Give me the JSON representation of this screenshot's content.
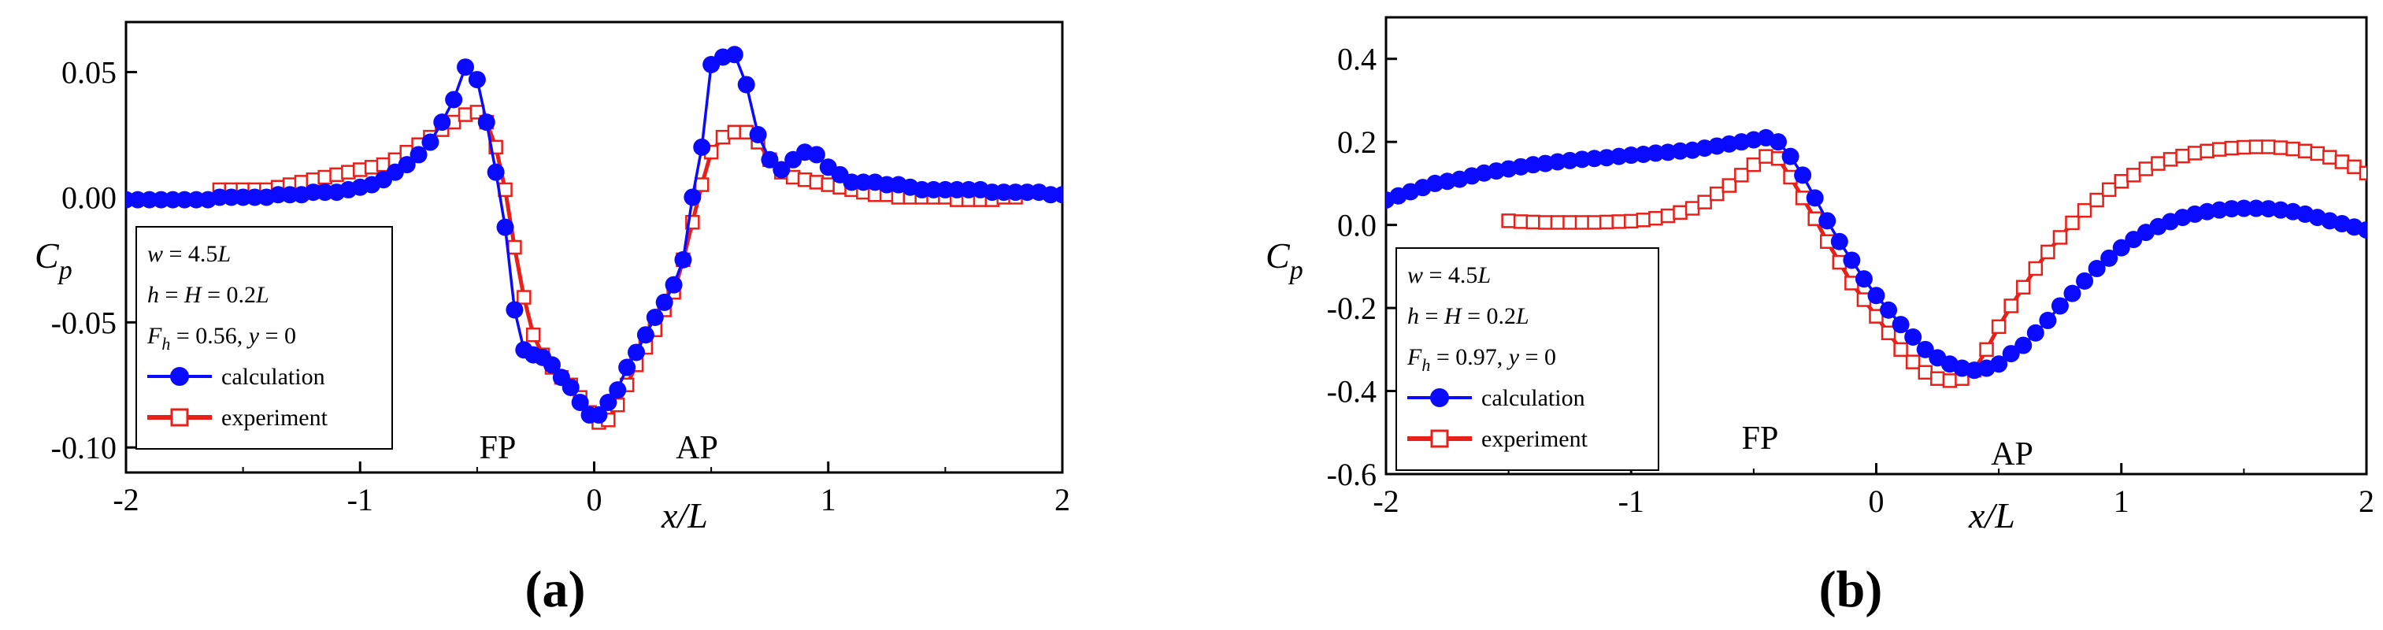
{
  "chart_data": [
    {
      "type": "line",
      "panel_label": "(a)",
      "xlim": [
        -2,
        2
      ],
      "ylim": [
        -0.11,
        0.07
      ],
      "xticks": [
        "-2",
        "-1",
        "0",
        "1",
        "2"
      ],
      "yticks": [
        "0.05",
        "0.00",
        "-0.05",
        "-0.10"
      ],
      "ytick_values": [
        0.05,
        0.0,
        -0.05,
        -0.1
      ],
      "xlabel": "x/L",
      "ylabel_main": "C",
      "ylabel_sub": "p",
      "annotations": [
        {
          "text": "FP",
          "x": -0.5,
          "y": -0.1
        },
        {
          "text": "AP",
          "x": 0.5,
          "y": -0.1
        }
      ],
      "legend": {
        "position": "bottom-left",
        "params": [
          {
            "sym": "w",
            "rest": " = 4.5",
            "end": "L"
          },
          {
            "sym": "h",
            "rest": " = ",
            "sym2": "H",
            "rest2": " = 0.2",
            "end": "L"
          },
          {
            "sym": "F",
            "sub": "h",
            "rest": " = 0.56, ",
            "sym2": "y",
            "rest2": " = 0"
          }
        ],
        "series_labels": [
          "calculation",
          "experiment"
        ]
      },
      "series": [
        {
          "name": "calculation",
          "color": "#0a0aff",
          "marker": "filled-circle",
          "x": [
            -2.0,
            -1.95,
            -1.9,
            -1.85,
            -1.8,
            -1.75,
            -1.7,
            -1.65,
            -1.6,
            -1.55,
            -1.5,
            -1.45,
            -1.4,
            -1.35,
            -1.3,
            -1.25,
            -1.2,
            -1.15,
            -1.1,
            -1.05,
            -1.0,
            -0.95,
            -0.9,
            -0.85,
            -0.8,
            -0.75,
            -0.7,
            -0.65,
            -0.6,
            -0.55,
            -0.5,
            -0.46,
            -0.42,
            -0.38,
            -0.34,
            -0.3,
            -0.26,
            -0.22,
            -0.18,
            -0.14,
            -0.1,
            -0.06,
            -0.02,
            0.02,
            0.06,
            0.1,
            0.14,
            0.18,
            0.22,
            0.26,
            0.3,
            0.34,
            0.38,
            0.42,
            0.46,
            0.5,
            0.55,
            0.6,
            0.65,
            0.7,
            0.75,
            0.8,
            0.85,
            0.9,
            0.95,
            1.0,
            1.05,
            1.1,
            1.15,
            1.2,
            1.25,
            1.3,
            1.35,
            1.4,
            1.45,
            1.5,
            1.55,
            1.6,
            1.65,
            1.7,
            1.75,
            1.8,
            1.85,
            1.9,
            1.95,
            2.0
          ],
          "y": [
            -0.001,
            -0.001,
            -0.001,
            -0.001,
            -0.001,
            -0.001,
            -0.001,
            -0.001,
            0.0,
            0.0,
            0.0,
            0.0,
            0.0,
            0.001,
            0.001,
            0.001,
            0.002,
            0.002,
            0.002,
            0.003,
            0.004,
            0.005,
            0.007,
            0.01,
            0.013,
            0.017,
            0.022,
            0.03,
            0.039,
            0.052,
            0.047,
            0.03,
            0.01,
            -0.012,
            -0.045,
            -0.061,
            -0.063,
            -0.064,
            -0.067,
            -0.072,
            -0.076,
            -0.082,
            -0.087,
            -0.087,
            -0.082,
            -0.077,
            -0.068,
            -0.062,
            -0.055,
            -0.048,
            -0.042,
            -0.035,
            -0.025,
            0.0,
            0.02,
            0.053,
            0.056,
            0.057,
            0.045,
            0.025,
            0.015,
            0.011,
            0.015,
            0.018,
            0.017,
            0.012,
            0.009,
            0.006,
            0.006,
            0.006,
            0.005,
            0.005,
            0.004,
            0.003,
            0.003,
            0.003,
            0.003,
            0.003,
            0.003,
            0.002,
            0.002,
            0.002,
            0.002,
            0.002,
            0.001,
            0.001
          ]
        },
        {
          "name": "experiment",
          "color": "#e8201a",
          "marker": "open-square",
          "x": [
            -1.6,
            -1.55,
            -1.5,
            -1.45,
            -1.4,
            -1.35,
            -1.3,
            -1.25,
            -1.2,
            -1.15,
            -1.1,
            -1.05,
            -1.0,
            -0.95,
            -0.9,
            -0.85,
            -0.8,
            -0.75,
            -0.7,
            -0.65,
            -0.6,
            -0.55,
            -0.5,
            -0.46,
            -0.42,
            -0.38,
            -0.34,
            -0.3,
            -0.26,
            -0.22,
            -0.18,
            -0.14,
            -0.1,
            -0.06,
            -0.02,
            0.02,
            0.06,
            0.1,
            0.14,
            0.18,
            0.22,
            0.26,
            0.3,
            0.34,
            0.38,
            0.42,
            0.46,
            0.5,
            0.55,
            0.6,
            0.65,
            0.7,
            0.75,
            0.8,
            0.85,
            0.9,
            0.95,
            1.0,
            1.05,
            1.1,
            1.15,
            1.2,
            1.25,
            1.3,
            1.35,
            1.4,
            1.45,
            1.5,
            1.55,
            1.6,
            1.65,
            1.7,
            1.75,
            1.8
          ],
          "y": [
            0.003,
            0.003,
            0.003,
            0.003,
            0.003,
            0.004,
            0.005,
            0.006,
            0.007,
            0.008,
            0.009,
            0.01,
            0.011,
            0.012,
            0.013,
            0.015,
            0.018,
            0.021,
            0.024,
            0.027,
            0.03,
            0.033,
            0.034,
            0.03,
            0.02,
            0.003,
            -0.02,
            -0.04,
            -0.055,
            -0.063,
            -0.068,
            -0.072,
            -0.075,
            -0.08,
            -0.086,
            -0.09,
            -0.089,
            -0.083,
            -0.075,
            -0.067,
            -0.06,
            -0.053,
            -0.045,
            -0.038,
            -0.025,
            -0.01,
            0.005,
            0.018,
            0.024,
            0.026,
            0.026,
            0.022,
            0.015,
            0.01,
            0.008,
            0.007,
            0.006,
            0.005,
            0.004,
            0.003,
            0.002,
            0.001,
            0.001,
            0.0,
            0.0,
            0.0,
            0.0,
            0.0,
            -0.001,
            -0.001,
            -0.001,
            -0.001,
            0.0,
            0.0
          ]
        }
      ]
    },
    {
      "type": "line",
      "panel_label": "(b)",
      "xlim": [
        -2,
        2
      ],
      "ylim": [
        -0.6,
        0.5
      ],
      "xticks": [
        "-2",
        "-1",
        "0",
        "1",
        "2"
      ],
      "yticks": [
        "0.4",
        "0.2",
        "0.0",
        "-0.2",
        "-0.4",
        "-0.6"
      ],
      "ytick_values": [
        0.4,
        0.2,
        0.0,
        -0.2,
        -0.4,
        -0.6
      ],
      "xlabel": "x/L",
      "ylabel_main": "C",
      "ylabel_sub": "p",
      "annotations": [
        {
          "text": "FP",
          "x": -0.5,
          "y": -0.55
        },
        {
          "text": "AP",
          "x": 0.5,
          "y": -0.55
        }
      ],
      "legend": {
        "position": "bottom-left",
        "params": [
          {
            "sym": "w",
            "rest": " = 4.5",
            "end": "L"
          },
          {
            "sym": "h",
            "rest": " = ",
            "sym2": "H",
            "rest2": " = 0.2",
            "end": "L"
          },
          {
            "sym": "F",
            "sub": "h",
            "rest": " = 0.97, ",
            "sym2": "y",
            "rest2": " = 0"
          }
        ],
        "series_labels": [
          "calculation",
          "experiment"
        ]
      },
      "series": [
        {
          "name": "calculation",
          "color": "#0a0aff",
          "marker": "filled-circle",
          "x": [
            -2.0,
            -1.95,
            -1.9,
            -1.85,
            -1.8,
            -1.75,
            -1.7,
            -1.65,
            -1.6,
            -1.55,
            -1.5,
            -1.45,
            -1.4,
            -1.35,
            -1.3,
            -1.25,
            -1.2,
            -1.15,
            -1.1,
            -1.05,
            -1.0,
            -0.95,
            -0.9,
            -0.85,
            -0.8,
            -0.75,
            -0.7,
            -0.65,
            -0.6,
            -0.55,
            -0.5,
            -0.45,
            -0.4,
            -0.35,
            -0.3,
            -0.25,
            -0.2,
            -0.15,
            -0.1,
            -0.05,
            0.0,
            0.05,
            0.1,
            0.15,
            0.2,
            0.25,
            0.3,
            0.35,
            0.4,
            0.45,
            0.5,
            0.55,
            0.6,
            0.65,
            0.7,
            0.75,
            0.8,
            0.85,
            0.9,
            0.95,
            1.0,
            1.05,
            1.1,
            1.15,
            1.2,
            1.25,
            1.3,
            1.35,
            1.4,
            1.45,
            1.5,
            1.55,
            1.6,
            1.65,
            1.7,
            1.75,
            1.8,
            1.85,
            1.9,
            1.95,
            2.0
          ],
          "y": [
            0.06,
            0.07,
            0.08,
            0.09,
            0.1,
            0.105,
            0.11,
            0.118,
            0.125,
            0.13,
            0.135,
            0.14,
            0.145,
            0.148,
            0.152,
            0.155,
            0.158,
            0.16,
            0.162,
            0.165,
            0.168,
            0.17,
            0.173,
            0.175,
            0.178,
            0.18,
            0.185,
            0.19,
            0.195,
            0.2,
            0.205,
            0.21,
            0.2,
            0.165,
            0.12,
            0.065,
            0.01,
            -0.04,
            -0.085,
            -0.13,
            -0.17,
            -0.205,
            -0.24,
            -0.27,
            -0.3,
            -0.32,
            -0.335,
            -0.345,
            -0.35,
            -0.345,
            -0.335,
            -0.31,
            -0.29,
            -0.26,
            -0.23,
            -0.195,
            -0.165,
            -0.135,
            -0.105,
            -0.08,
            -0.055,
            -0.035,
            -0.018,
            -0.004,
            0.008,
            0.018,
            0.026,
            0.032,
            0.036,
            0.039,
            0.04,
            0.04,
            0.039,
            0.036,
            0.032,
            0.026,
            0.018,
            0.01,
            0.003,
            -0.005,
            -0.012
          ]
        },
        {
          "name": "experiment",
          "color": "#e8201a",
          "marker": "open-square",
          "x": [
            -1.5,
            -1.45,
            -1.4,
            -1.35,
            -1.3,
            -1.25,
            -1.2,
            -1.15,
            -1.1,
            -1.05,
            -1.0,
            -0.95,
            -0.9,
            -0.85,
            -0.8,
            -0.75,
            -0.7,
            -0.65,
            -0.6,
            -0.55,
            -0.5,
            -0.45,
            -0.4,
            -0.35,
            -0.3,
            -0.25,
            -0.2,
            -0.15,
            -0.1,
            -0.05,
            0.0,
            0.05,
            0.1,
            0.15,
            0.2,
            0.25,
            0.3,
            0.35,
            0.4,
            0.45,
            0.5,
            0.55,
            0.6,
            0.65,
            0.7,
            0.75,
            0.8,
            0.85,
            0.9,
            0.95,
            1.0,
            1.05,
            1.1,
            1.15,
            1.2,
            1.25,
            1.3,
            1.35,
            1.4,
            1.45,
            1.5,
            1.55,
            1.6,
            1.65,
            1.7,
            1.75,
            1.8,
            1.85,
            1.9,
            1.95,
            2.0
          ],
          "y": [
            0.01,
            0.008,
            0.007,
            0.006,
            0.006,
            0.006,
            0.006,
            0.006,
            0.007,
            0.008,
            0.009,
            0.012,
            0.016,
            0.022,
            0.03,
            0.04,
            0.055,
            0.075,
            0.095,
            0.12,
            0.145,
            0.165,
            0.16,
            0.115,
            0.065,
            0.015,
            -0.04,
            -0.09,
            -0.14,
            -0.18,
            -0.22,
            -0.26,
            -0.3,
            -0.33,
            -0.355,
            -0.37,
            -0.375,
            -0.37,
            -0.35,
            -0.3,
            -0.245,
            -0.195,
            -0.15,
            -0.105,
            -0.065,
            -0.03,
            0.005,
            0.035,
            0.06,
            0.085,
            0.105,
            0.12,
            0.135,
            0.148,
            0.158,
            0.166,
            0.173,
            0.178,
            0.182,
            0.185,
            0.187,
            0.188,
            0.188,
            0.186,
            0.183,
            0.178,
            0.172,
            0.163,
            0.152,
            0.14,
            0.125
          ]
        }
      ]
    }
  ]
}
